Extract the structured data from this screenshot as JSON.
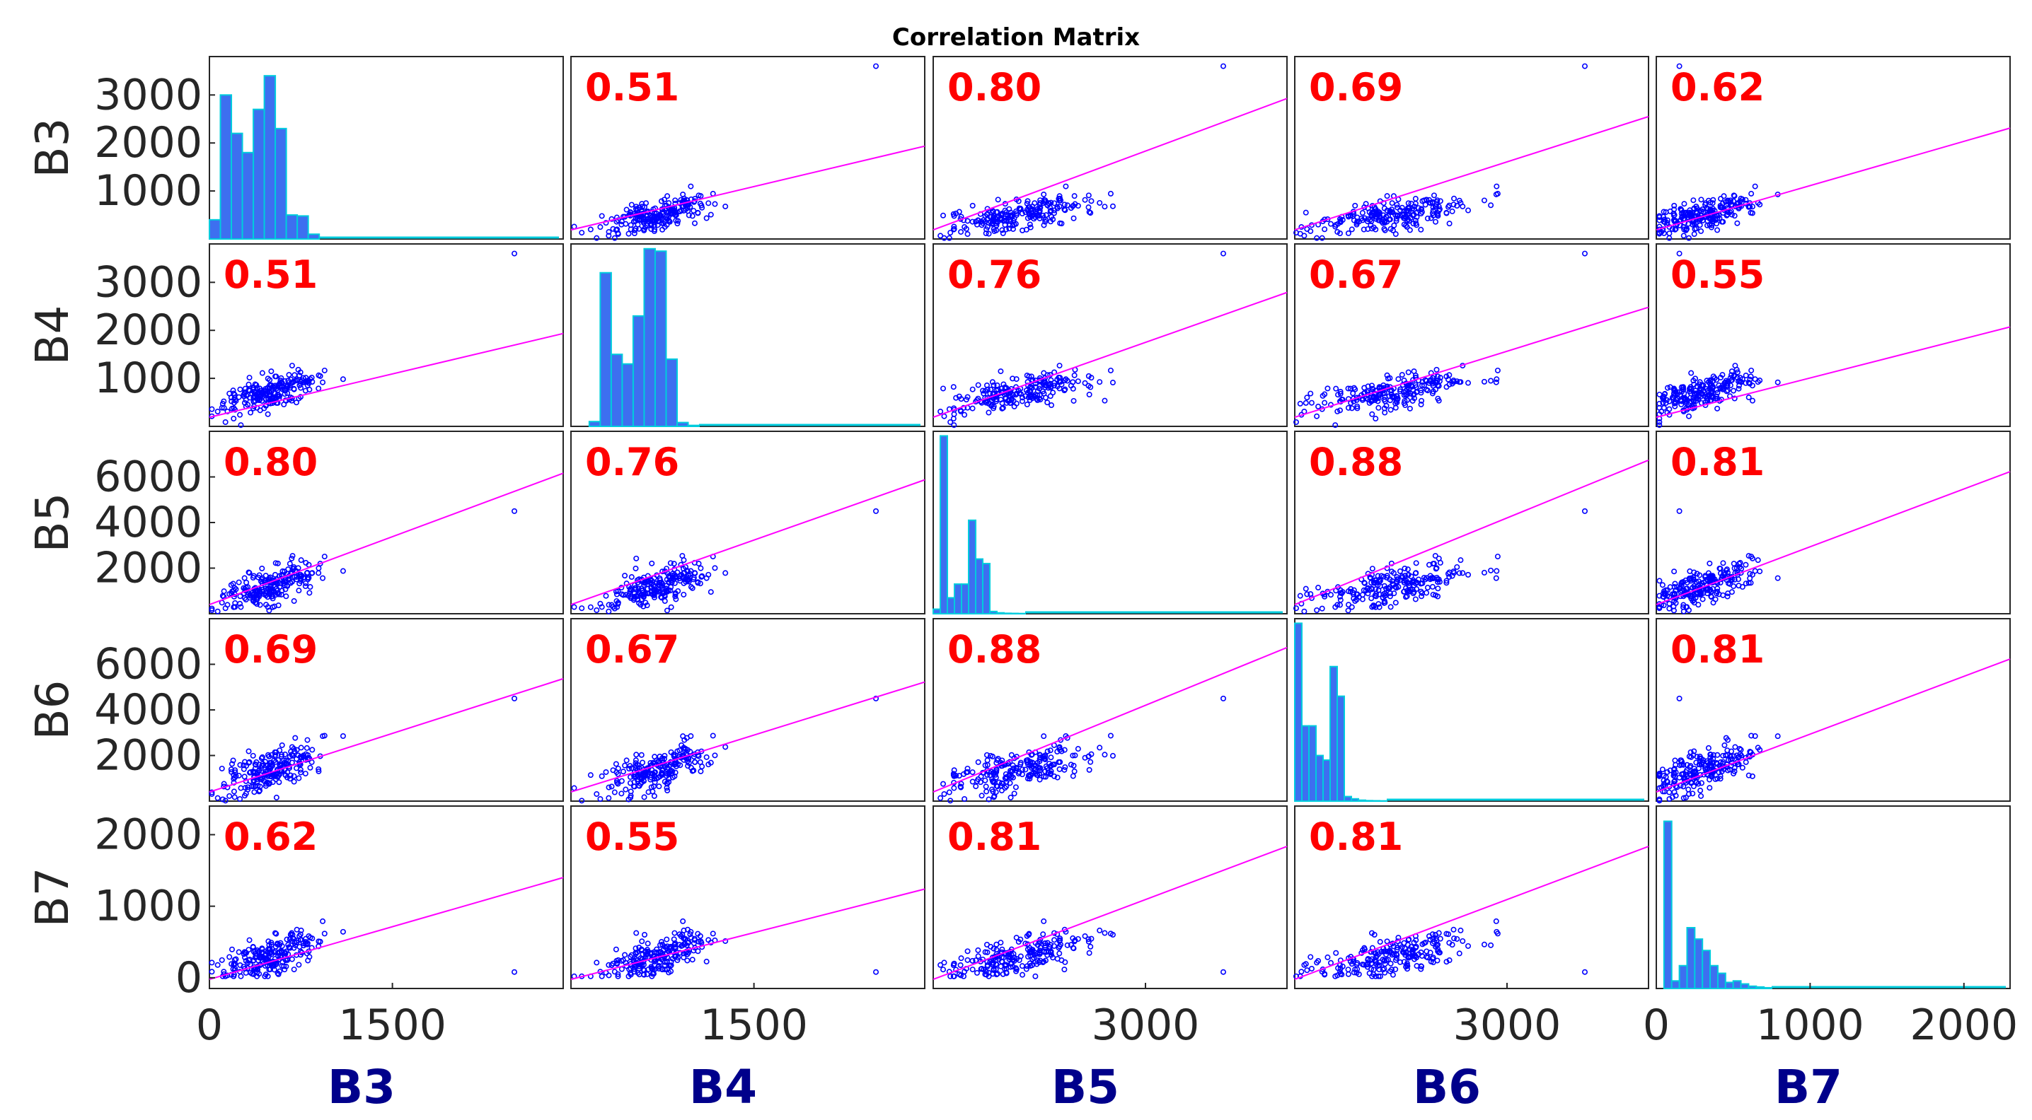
{
  "chart_data": {
    "type": "scatter-matrix",
    "title": "Correlation Matrix",
    "variables": [
      "B3",
      "B4",
      "B5",
      "B6",
      "B7"
    ],
    "correlations": [
      [
        null,
        0.51,
        0.8,
        0.69,
        0.62
      ],
      [
        0.51,
        null,
        0.76,
        0.67,
        0.55
      ],
      [
        0.8,
        0.76,
        null,
        0.88,
        0.81
      ],
      [
        0.69,
        0.67,
        0.88,
        null,
        0.81
      ],
      [
        0.62,
        0.55,
        0.81,
        0.81,
        null
      ]
    ],
    "correlation_labels": [
      [
        "",
        "0.51",
        "0.80",
        "0.69",
        "0.62"
      ],
      [
        "0.51",
        "",
        "0.76",
        "0.67",
        "0.55"
      ],
      [
        "0.80",
        "0.76",
        "",
        "0.88",
        "0.81"
      ],
      [
        "0.69",
        "0.67",
        "0.88",
        "",
        "0.81"
      ],
      [
        "0.62",
        "0.55",
        "0.81",
        "0.81",
        ""
      ]
    ],
    "row_labels": [
      "B3",
      "B4",
      "B5",
      "B6",
      "B7"
    ],
    "column_labels": [
      "B3",
      "B4",
      "B5",
      "B6",
      "B7"
    ],
    "x_ranges": [
      [
        0,
        2900
      ],
      [
        0,
        2900
      ],
      [
        0,
        5000
      ],
      [
        0,
        5000
      ],
      [
        0,
        2300
      ]
    ],
    "y_ranges": [
      [
        0,
        3800
      ],
      [
        0,
        3800
      ],
      [
        0,
        8000
      ],
      [
        0,
        8000
      ],
      [
        -150,
        2400
      ]
    ],
    "x_ticks": [
      {
        "values": [
          0,
          1500
        ],
        "labels": [
          "0",
          "1500"
        ]
      },
      {
        "values": [
          1500
        ],
        "labels": [
          "1500"
        ]
      },
      {
        "values": [
          3000
        ],
        "labels": [
          "3000"
        ]
      },
      {
        "values": [
          3000
        ],
        "labels": [
          "3000"
        ]
      },
      {
        "values": [
          0,
          1000,
          2000
        ],
        "labels": [
          "0",
          "1000",
          "2000"
        ]
      }
    ],
    "y_ticks": [
      {
        "values": [
          1000,
          2000,
          3000
        ],
        "labels": [
          "1000",
          "2000",
          "3000"
        ]
      },
      {
        "values": [
          1000,
          2000,
          3000
        ],
        "labels": [
          "1000",
          "2000",
          "3000"
        ]
      },
      {
        "values": [
          2000,
          4000,
          6000
        ],
        "labels": [
          "2000",
          "4000",
          "6000"
        ]
      },
      {
        "values": [
          2000,
          4000,
          6000
        ],
        "labels": [
          "2000",
          "4000",
          "6000"
        ]
      },
      {
        "values": [
          0,
          1000,
          2000
        ],
        "labels": [
          "0",
          "1000",
          "2000"
        ]
      }
    ],
    "histograms": [
      {
        "bin_starts": [
          0,
          90,
          180,
          270,
          360,
          450,
          540,
          630,
          720,
          810
        ],
        "bin_width": 90,
        "counts": [
          400,
          3000,
          2200,
          1800,
          2700,
          3400,
          2300,
          500,
          480,
          100
        ]
      },
      {
        "bin_starts": [
          150,
          240,
          330,
          420,
          510,
          600,
          690,
          780,
          870,
          960
        ],
        "bin_width": 90,
        "counts": [
          100,
          3200,
          1500,
          1300,
          2300,
          3700,
          3650,
          1400,
          80,
          20
        ]
      },
      {
        "bin_starts": [
          0,
          100,
          200,
          300,
          400,
          500,
          600,
          700,
          800,
          900,
          1000,
          1100,
          1200
        ],
        "bin_width": 100,
        "counts": [
          200,
          7800,
          700,
          1300,
          1300,
          4100,
          2400,
          2200,
          100,
          40,
          20,
          15,
          10
        ]
      },
      {
        "bin_starts": [
          0,
          100,
          200,
          300,
          400,
          500,
          600,
          700,
          800,
          900,
          1000,
          1100,
          1200
        ],
        "bin_width": 100,
        "counts": [
          7800,
          3300,
          3300,
          2000,
          1800,
          5900,
          4600,
          200,
          100,
          40,
          20,
          15,
          10
        ]
      },
      {
        "bin_starts": [
          0,
          50,
          100,
          150,
          200,
          250,
          300,
          350,
          400,
          450,
          500,
          550,
          600,
          650,
          700
        ],
        "bin_width": 50,
        "counts": [
          0,
          2200,
          100,
          300,
          800,
          650,
          500,
          300,
          200,
          80,
          100,
          60,
          30,
          20,
          10
        ]
      }
    ],
    "colors": {
      "points": "#0000FF",
      "fit_line": "#FF00FF",
      "histogram_fill": "#3D6FF0",
      "histogram_edge": "#00CCDD",
      "correlation_text": "#FF0000",
      "column_label": "#00008B",
      "axis": "#262626"
    },
    "grid": false
  }
}
